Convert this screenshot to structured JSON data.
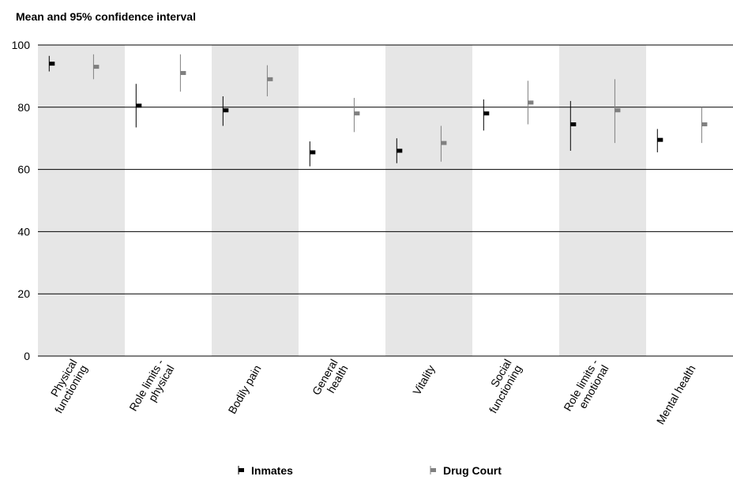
{
  "chart_data": {
    "type": "scatter",
    "subtitle": "Mean and 95% confidence interval",
    "categories": [
      [
        "Physical",
        "functioning"
      ],
      [
        "Role limits -",
        "physical"
      ],
      [
        "Bodily pain"
      ],
      [
        "General",
        "health"
      ],
      [
        "Vitality"
      ],
      [
        "Social",
        "functioning"
      ],
      [
        "Role limits -",
        "emotional"
      ],
      [
        "Mental health"
      ]
    ],
    "ylim": [
      0,
      100
    ],
    "yticks": [
      0,
      20,
      40,
      60,
      80,
      100
    ],
    "grid": true,
    "shaded_bands": "alternating categories (1st, 3rd, 5th, 7th)",
    "legend_position": "bottom",
    "series": [
      {
        "name": "Inmates",
        "color": "#000000",
        "mean": [
          94.0,
          80.5,
          79.0,
          65.5,
          66.0,
          78.0,
          74.5,
          69.5
        ],
        "lower": [
          91.5,
          73.5,
          74.0,
          61.0,
          62.0,
          72.5,
          66.0,
          65.5
        ],
        "upper": [
          96.5,
          87.5,
          83.5,
          69.0,
          70.0,
          82.5,
          82.0,
          73.0
        ]
      },
      {
        "name": "Drug Court",
        "color": "#808080",
        "mean": [
          93.0,
          91.0,
          89.0,
          78.0,
          68.5,
          81.5,
          79.0,
          74.5
        ],
        "lower": [
          89.0,
          85.0,
          83.5,
          72.0,
          62.5,
          74.5,
          68.5,
          68.5
        ],
        "upper": [
          97.0,
          97.0,
          93.5,
          83.0,
          74.0,
          88.5,
          89.0,
          80.0
        ]
      }
    ]
  }
}
